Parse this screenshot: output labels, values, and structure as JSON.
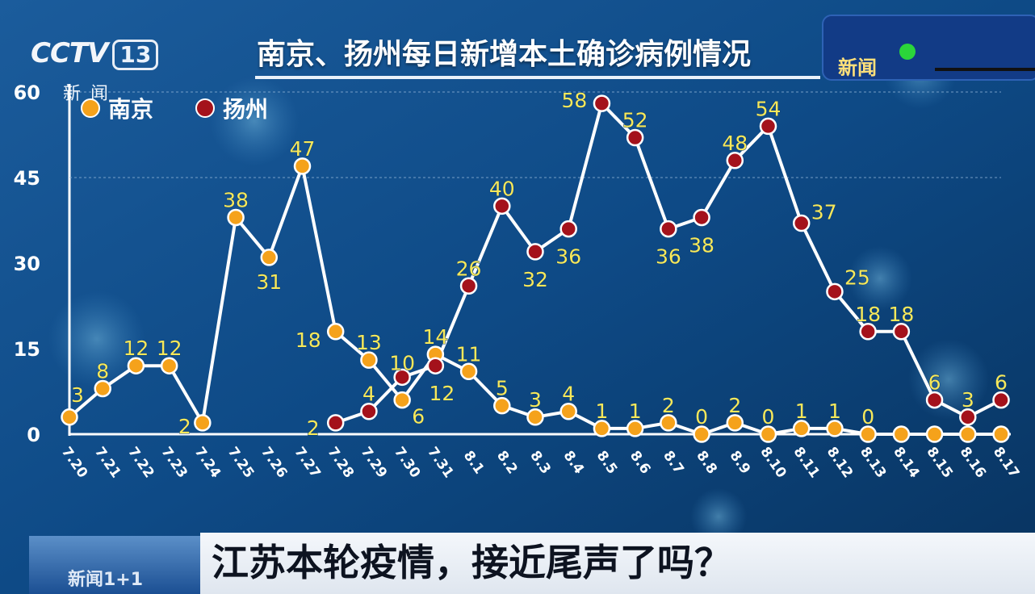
{
  "broadcast": {
    "channel_logo": "CCTV",
    "channel_number": "13",
    "channel_sub": "新闻",
    "badge_label": "新闻"
  },
  "headline": "江苏本轮疫情，接近尾声了吗？",
  "banner_thumb_text": "新闻1+1",
  "colors": {
    "nanjing": "#f5a21b",
    "yangzhou": "#a4121b",
    "line": "#ffffff",
    "label_text": "#f7e85a",
    "background": "#0b3f74"
  },
  "chart_data": {
    "type": "line",
    "title": "南京、扬州每日新增本土确诊病例情况",
    "categories": [
      "7.20",
      "7.21",
      "7.22",
      "7.23",
      "7.24",
      "7.25",
      "7.26",
      "7.27",
      "7.28",
      "7.29",
      "7.30",
      "7.31",
      "8.1",
      "8.2",
      "8.3",
      "8.4",
      "8.5",
      "8.6",
      "8.7",
      "8.8",
      "8.9",
      "8.10",
      "8.11",
      "8.12",
      "8.13",
      "8.14",
      "8.15",
      "8.16",
      "8.17"
    ],
    "ylim": [
      0,
      60
    ],
    "yticks": [
      0,
      15,
      30,
      45,
      60
    ],
    "grid": "dashed at 45 and 60",
    "legend_position": "top-left",
    "series": [
      {
        "name": "南京",
        "color": "#f5a21b",
        "values": [
          3,
          8,
          12,
          12,
          2,
          38,
          31,
          47,
          18,
          13,
          6,
          14,
          11,
          5,
          3,
          4,
          1,
          1,
          2,
          0,
          2,
          0,
          1,
          1,
          0,
          0,
          0,
          0,
          0
        ],
        "labels": [
          "3",
          "8",
          "12",
          "12",
          "2",
          "38",
          "31",
          "47",
          "18",
          "13",
          "6",
          "14",
          "11",
          "5",
          "3",
          "4",
          "1",
          "1",
          "2",
          "0",
          "2",
          "0",
          "1",
          "1",
          "0",
          null,
          null,
          null,
          null
        ]
      },
      {
        "name": "扬州",
        "color": "#a4121b",
        "start_index": 8,
        "values": [
          null,
          null,
          null,
          null,
          null,
          null,
          null,
          null,
          2,
          4,
          10,
          12,
          26,
          40,
          32,
          36,
          58,
          52,
          36,
          38,
          48,
          54,
          37,
          25,
          18,
          18,
          6,
          3,
          6
        ],
        "labels": [
          null,
          null,
          null,
          null,
          null,
          null,
          null,
          null,
          "2",
          "4",
          "10",
          "12",
          "26",
          "40",
          "32",
          "36",
          "58",
          "52",
          "36",
          "38",
          "48",
          "54",
          "37",
          "25",
          "18",
          "18",
          "6",
          "3",
          "6"
        ]
      }
    ]
  }
}
